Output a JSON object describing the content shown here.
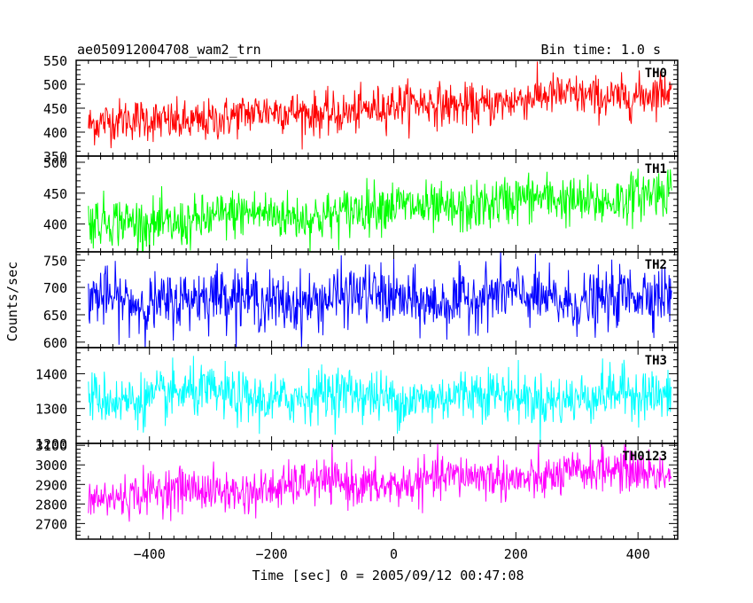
{
  "header": {
    "title": "ae050912004708_wam2_trn",
    "bin_time": "Bin time: 1.0 s"
  },
  "chart_data": {
    "type": "line",
    "title": "ae050912004708_wam2_trn",
    "subtitle": "Bin time: 1.0 s",
    "xlabel": "Time [sec] 0 = 2005/09/12 00:47:08",
    "ylabel": "Counts/sec",
    "xlim": [
      -520,
      465
    ],
    "x_range": [
      -500,
      455
    ],
    "x_ticks": [
      -400,
      -200,
      0,
      200,
      400
    ],
    "x_tick_labels": [
      "−400",
      "−200",
      "0",
      "200",
      "400"
    ],
    "grid": false,
    "panels": [
      {
        "label": "TH0",
        "color": "#ff0000",
        "ylim": [
          350,
          550
        ],
        "y_ticks": [
          350,
          400,
          450,
          500,
          550
        ],
        "mean_start": 415,
        "mean_end": 485,
        "noise_sd": 22
      },
      {
        "label": "TH1",
        "color": "#00ff00",
        "ylim": [
          355,
          510
        ],
        "y_ticks": [
          350,
          400,
          450,
          500
        ],
        "mean_start": 398,
        "mean_end": 448,
        "noise_sd": 20
      },
      {
        "label": "TH2",
        "color": "#0000ff",
        "ylim": [
          590,
          765
        ],
        "y_ticks": [
          600,
          650,
          700,
          750
        ],
        "mean_start": 678,
        "mean_end": 680,
        "noise_sd": 27
      },
      {
        "label": "TH3",
        "color": "#00ffff",
        "ylim": [
          1200,
          1475
        ],
        "y_ticks": [
          1200,
          1300,
          1400
        ],
        "mean_start": 1335,
        "mean_end": 1335,
        "noise_sd": 37
      },
      {
        "label": "TH0123",
        "color": "#ff00ff",
        "ylim": [
          2620,
          3110
        ],
        "y_ticks": [
          2700,
          2800,
          2900,
          3000,
          3100
        ],
        "mean_start": 2840,
        "mean_end": 2975,
        "noise_sd": 55
      }
    ]
  }
}
